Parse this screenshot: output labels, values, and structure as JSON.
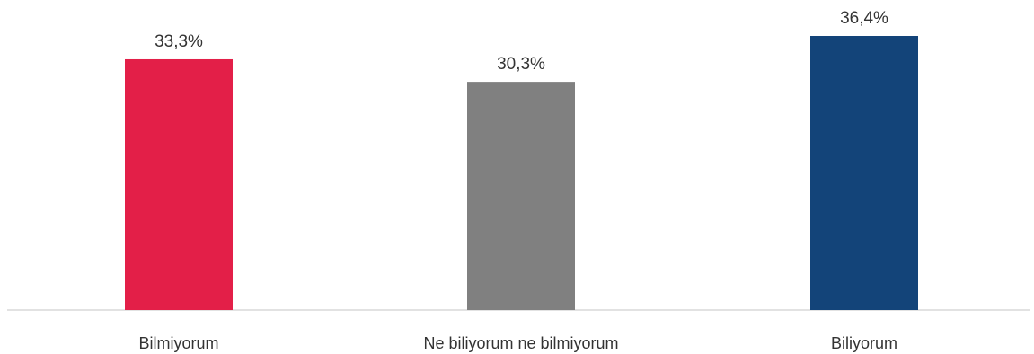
{
  "chart_data": {
    "type": "bar",
    "categories": [
      "Bilmiyorum",
      "Ne biliyorum ne bilmiyorum",
      "Biliyorum"
    ],
    "values": [
      33.3,
      30.3,
      36.4
    ],
    "value_labels": [
      "33,3%",
      "30,3%",
      "36,4%"
    ],
    "colors": [
      "#e31f48",
      "#808080",
      "#134479"
    ],
    "title": "",
    "xlabel": "",
    "ylabel": "",
    "ylim": [
      0,
      40
    ],
    "grid": false,
    "legend": "none"
  }
}
